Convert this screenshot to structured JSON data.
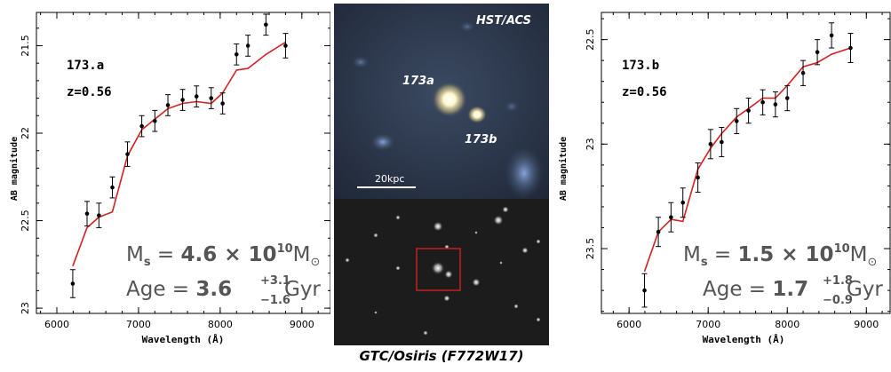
{
  "chart_data": [
    {
      "type": "scatter",
      "label": "173.a",
      "redshift": "z=0.56",
      "xlabel": "Wavelength (Å)",
      "ylabel": "AB magnitude",
      "xlim": [
        5750,
        9350
      ],
      "ylim": [
        23.03,
        21.31
      ],
      "y_inverted": true,
      "xticks": [
        "6000",
        "7000",
        "8000",
        "9000"
      ],
      "yticks": [
        "21.5",
        "22",
        "22.5",
        "23"
      ],
      "mass_text": "M_s = 4.6 × 10^10 M_⊙",
      "mass_value": "4.6",
      "mass_exp": "10",
      "age_text": "Age = 3.6 +3.1 −1.6 Gyr",
      "age_value": "3.6",
      "age_up": "+3.1",
      "age_down": "−1.6",
      "points": {
        "x": [
          6195,
          6370,
          6515,
          6680,
          6865,
          7040,
          7200,
          7360,
          7540,
          7710,
          7890,
          8030,
          8200,
          8340,
          8560,
          8800
        ],
        "y": [
          22.86,
          22.46,
          22.47,
          22.31,
          22.12,
          21.96,
          21.93,
          21.84,
          21.81,
          21.79,
          21.8,
          21.83,
          21.55,
          21.5,
          21.38,
          21.5
        ],
        "yerr": [
          0.08,
          0.07,
          0.07,
          0.06,
          0.07,
          0.06,
          0.06,
          0.06,
          0.06,
          0.06,
          0.06,
          0.06,
          0.06,
          0.06,
          0.06,
          0.07
        ]
      },
      "model": {
        "x": [
          6195,
          6370,
          6515,
          6680,
          6865,
          7040,
          7200,
          7360,
          7540,
          7710,
          7890,
          8030,
          8200,
          8340,
          8560,
          8800
        ],
        "y": [
          22.76,
          22.54,
          22.48,
          22.45,
          22.13,
          21.98,
          21.92,
          21.86,
          21.83,
          21.82,
          21.83,
          21.77,
          21.64,
          21.63,
          21.55,
          21.48
        ]
      }
    },
    {
      "type": "scatter",
      "label": "173.b",
      "redshift": "z=0.56",
      "xlabel": "Wavelength (Å)",
      "ylabel": "AB magnitude",
      "xlim": [
        5650,
        9300
      ],
      "ylim": [
        23.81,
        22.37
      ],
      "y_inverted": true,
      "xticks": [
        "6000",
        "7000",
        "8000",
        "9000"
      ],
      "yticks": [
        "22.5",
        "23",
        "23.5"
      ],
      "mass_text": "M_s = 1.5 × 10^10 M_⊙",
      "mass_value": "1.5",
      "mass_exp": "10",
      "age_text": "Age = 1.7 +1.8 −0.9 Gyr",
      "age_value": "1.7",
      "age_up": "+1.8",
      "age_down": "−0.9",
      "points": {
        "x": [
          6195,
          6370,
          6530,
          6680,
          6870,
          7030,
          7170,
          7360,
          7510,
          7690,
          7850,
          8000,
          8200,
          8380,
          8560,
          8800
        ],
        "y": [
          23.7,
          23.42,
          23.35,
          23.28,
          23.16,
          23.0,
          22.99,
          22.89,
          22.84,
          22.8,
          22.81,
          22.78,
          22.66,
          22.56,
          22.48,
          22.54
        ],
        "yerr": [
          0.08,
          0.07,
          0.07,
          0.07,
          0.07,
          0.07,
          0.07,
          0.06,
          0.06,
          0.06,
          0.06,
          0.06,
          0.06,
          0.06,
          0.06,
          0.07
        ]
      },
      "model": {
        "x": [
          6195,
          6370,
          6530,
          6680,
          6870,
          7030,
          7170,
          7360,
          7510,
          7690,
          7850,
          8000,
          8200,
          8380,
          8560,
          8800
        ],
        "y": [
          23.61,
          23.42,
          23.36,
          23.37,
          23.12,
          23.02,
          22.95,
          22.87,
          22.83,
          22.78,
          22.78,
          22.72,
          22.63,
          22.61,
          22.57,
          22.54
        ]
      }
    }
  ],
  "hst_image": {
    "instrument_label": "HST/ACS",
    "source_a_label": "173a",
    "source_b_label": "173b",
    "scalebar_label": "20kpc"
  },
  "gtc_image": {
    "caption": "GTC/Osiris (F772W17)"
  },
  "colors": {
    "model_line": "#d42020",
    "points": "#000000",
    "box": "#c42020"
  }
}
